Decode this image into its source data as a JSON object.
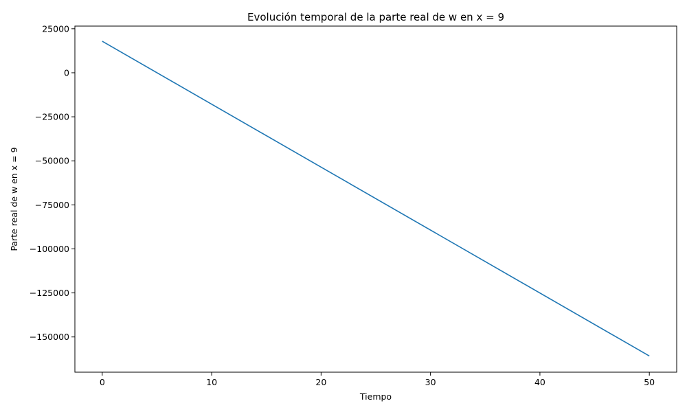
{
  "chart_data": {
    "type": "line",
    "title": "Evolución temporal de la parte real de w en x = 9",
    "xlabel": "Tiempo",
    "ylabel": "Parte real de w en x = 9",
    "xlim": [
      -2.5,
      52.5
    ],
    "ylim": [
      -170000,
      26500
    ],
    "xticks": [
      0,
      10,
      20,
      30,
      40,
      50
    ],
    "yticks": [
      25000,
      0,
      -25000,
      -50000,
      -75000,
      -100000,
      -125000,
      -150000
    ],
    "ytick_labels": [
      "25000",
      "0",
      "−25000",
      "−50000",
      "−75000",
      "−100000",
      "−125000",
      "−150000"
    ],
    "grid": false,
    "series": [
      {
        "color": "#1f77b4",
        "x": [
          0,
          50
        ],
        "y": [
          17900,
          -160800
        ]
      }
    ]
  }
}
